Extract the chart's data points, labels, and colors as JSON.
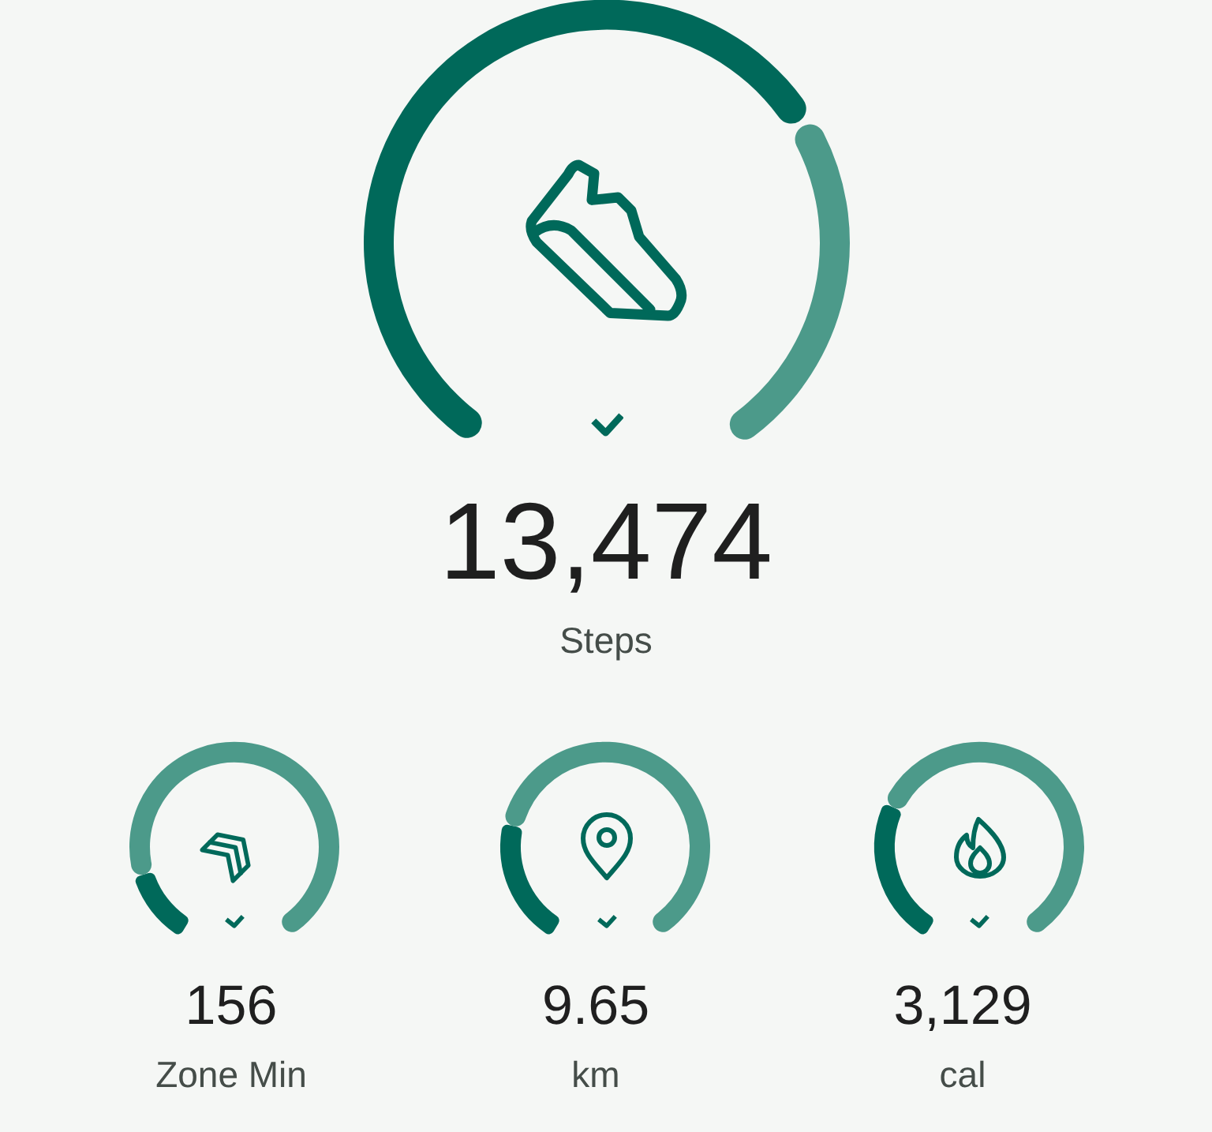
{
  "chart_data": [
    {
      "type": "donut",
      "categories": [
        null,
        null
      ],
      "values": [
        70,
        30
      ],
      "colors": [
        "#00695a",
        "#4c9a8a"
      ],
      "annotations": [
        "13,474",
        "Steps"
      ]
    },
    {
      "type": "donut",
      "categories": [
        null,
        null
      ],
      "values": [
        14,
        86
      ],
      "colors": [
        "#00695a",
        "#4c9a8a"
      ],
      "annotations": [
        "156",
        "Zone Min"
      ]
    },
    {
      "type": "donut",
      "categories": [
        null,
        null
      ],
      "values": [
        24,
        76
      ],
      "colors": [
        "#00695a",
        "#4c9a8a"
      ],
      "annotations": [
        "9.65",
        "km"
      ]
    },
    {
      "type": "donut",
      "categories": [
        null,
        null
      ],
      "values": [
        28,
        72
      ],
      "colors": [
        "#00695a",
        "#4c9a8a"
      ],
      "annotations": [
        "3,129",
        "cal"
      ]
    }
  ]
}
